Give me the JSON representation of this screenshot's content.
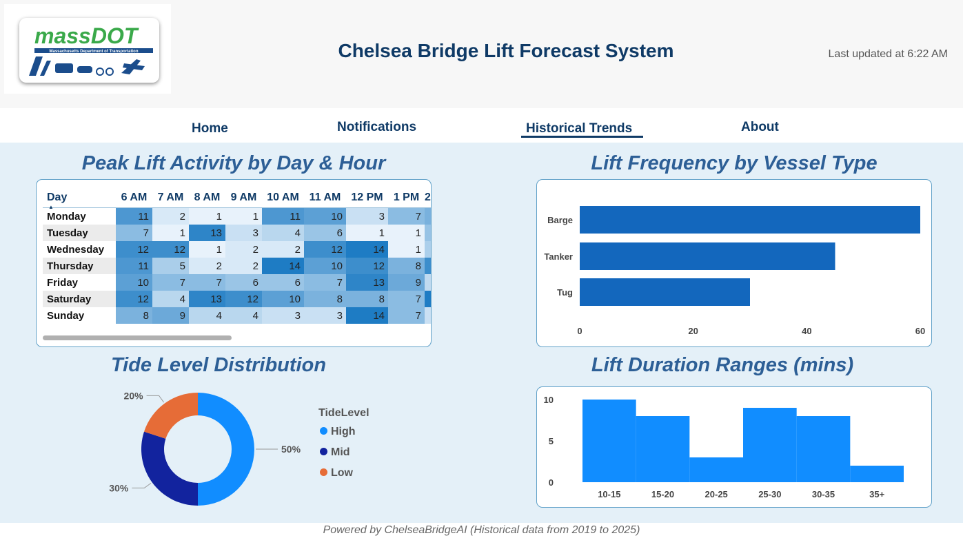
{
  "header": {
    "logo": {
      "brand": "massDOT",
      "subtitle": "Massachusetts Department of Transportation"
    },
    "title": "Chelsea Bridge Lift Forecast System",
    "last_updated": "Last updated at 6:22 AM"
  },
  "nav": {
    "home": "Home",
    "notifications": "Notifications",
    "historical_trends": "Historical Trends",
    "about": "About",
    "active": "Historical Trends"
  },
  "panels": {
    "heatmap_title": "Peak Lift Activity by Day & Hour",
    "vessel_title": "Lift Frequency by Vessel Type",
    "tide_title": "Tide Level  Distribution",
    "duration_title": "Lift Duration Ranges (mins)"
  },
  "heatmap": {
    "row_header": "Day",
    "columns": [
      "6 AM",
      "7 AM",
      "8 AM",
      "9 AM",
      "10 AM",
      "11 AM",
      "12 PM",
      "1 PM",
      "2"
    ],
    "rows": [
      {
        "day": "Monday",
        "values": [
          11,
          2,
          1,
          1,
          11,
          10,
          3,
          7
        ]
      },
      {
        "day": "Tuesday",
        "values": [
          7,
          1,
          13,
          3,
          4,
          6,
          1,
          1
        ]
      },
      {
        "day": "Wednesday",
        "values": [
          12,
          12,
          1,
          2,
          2,
          12,
          14,
          1
        ]
      },
      {
        "day": "Thursday",
        "values": [
          11,
          5,
          2,
          2,
          14,
          10,
          12,
          8
        ]
      },
      {
        "day": "Friday",
        "values": [
          10,
          7,
          7,
          6,
          6,
          7,
          13,
          9
        ]
      },
      {
        "day": "Saturday",
        "values": [
          12,
          4,
          13,
          12,
          10,
          8,
          8,
          7
        ]
      },
      {
        "day": "Sunday",
        "values": [
          8,
          9,
          4,
          4,
          3,
          3,
          14,
          7
        ]
      }
    ],
    "partial_column_shade": [
      0.55,
      0.4,
      0.3,
      0.85,
      0.2,
      1.0,
      0.15
    ]
  },
  "chart_data": [
    {
      "type": "bar",
      "orientation": "horizontal",
      "title": "Lift Frequency by Vessel Type",
      "categories": [
        "Barge",
        "Tanker",
        "Tug"
      ],
      "values": [
        60,
        45,
        30
      ],
      "xlim": [
        0,
        60
      ],
      "ticks": [
        0,
        20,
        40,
        60
      ],
      "color": "#1367bd"
    },
    {
      "type": "pie",
      "subtype": "donut",
      "title": "Tide Level  Distribution",
      "legend_title": "TideLevel",
      "categories": [
        "High",
        "Mid",
        "Low"
      ],
      "values": [
        50,
        30,
        20
      ],
      "labels": [
        "50%",
        "30%",
        "20%"
      ],
      "colors": [
        "#118dff",
        "#12239e",
        "#e66c37"
      ],
      "legend_position": "right"
    },
    {
      "type": "bar",
      "title": "Lift Duration Ranges (mins)",
      "categories": [
        "10-15",
        "15-20",
        "20-25",
        "25-30",
        "30-35",
        "35+"
      ],
      "values": [
        10,
        8,
        3,
        9,
        8,
        2
      ],
      "ylim": [
        0,
        10
      ],
      "yticks": [
        0,
        5,
        10
      ],
      "color": "#118dff"
    }
  ],
  "footer": "Powered by ChelseaBridgeAI (Historical data from 2019 to 2025)"
}
